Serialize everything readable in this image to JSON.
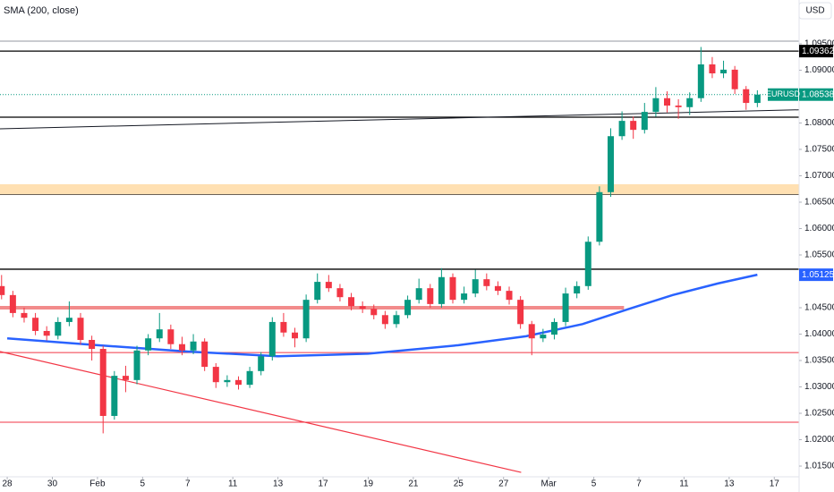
{
  "chart_data": {
    "type": "candlestick",
    "indicator_label": "SMA (200, close)",
    "currency": "USD",
    "symbol": "EURUSD",
    "up_color": "#089981",
    "down_color": "#f23645",
    "x": [
      -0.25,
      0.25,
      0.75,
      1.25,
      1.75,
      2.25,
      2.75,
      3.25,
      3.75,
      4.25,
      4.75,
      5.25,
      5.75,
      6.25,
      6.75,
      7.25,
      7.75,
      8.25,
      8.75,
      9.25,
      9.75,
      10.25,
      10.75,
      11.25,
      11.75,
      12.25,
      12.75,
      13.25,
      13.75,
      14.25,
      14.75,
      15.25,
      15.75,
      16.25,
      16.75,
      17.25,
      17.75,
      18.25,
      18.75,
      19.25,
      19.75,
      20.25,
      20.75,
      21.25,
      21.75,
      22.25,
      22.75,
      23.25,
      23.75,
      24.25,
      24.75,
      25.25,
      25.75,
      26.25,
      26.75,
      27.25,
      27.75,
      28.25,
      28.75,
      29.25,
      29.75,
      30.25,
      30.75,
      31.25,
      31.75,
      32.25,
      32.75,
      33.25
    ],
    "open": [
      1.0491,
      1.0474,
      1.044,
      1.0431,
      1.0406,
      1.0397,
      1.0423,
      1.0431,
      1.0389,
      1.0372,
      1.0245,
      1.0321,
      1.0313,
      1.0369,
      1.0392,
      1.0409,
      1.0381,
      1.0369,
      1.0386,
      1.0338,
      1.0309,
      1.0313,
      1.0304,
      1.033,
      1.0358,
      1.0423,
      1.0403,
      1.0392,
      1.0465,
      1.0499,
      1.0487,
      1.047,
      1.0453,
      1.0448,
      1.0436,
      1.0419,
      1.0436,
      1.0465,
      1.0487,
      1.0457,
      1.0508,
      1.0465,
      1.0477,
      1.0504,
      1.0491,
      1.0482,
      1.0465,
      1.0419,
      1.0392,
      1.0399,
      1.0423,
      1.0477,
      1.0491,
      1.0575,
      1.0669,
      1.0775,
      1.0804,
      1.0787,
      1.0821,
      1.0847,
      1.0833,
      1.083,
      1.0847,
      1.0911,
      1.0894,
      1.0901,
      1.0864,
      1.0838
    ],
    "high": [
      1.0512,
      1.0482,
      1.045,
      1.044,
      1.0415,
      1.0432,
      1.0462,
      1.044,
      1.0397,
      1.0378,
      1.033,
      1.034,
      1.0378,
      1.04,
      1.044,
      1.0418,
      1.0395,
      1.04,
      1.0392,
      1.0345,
      1.0322,
      1.032,
      1.0338,
      1.0366,
      1.0432,
      1.044,
      1.0412,
      1.0475,
      1.0515,
      1.0512,
      1.0495,
      1.0478,
      1.0462,
      1.0456,
      1.0444,
      1.0444,
      1.0473,
      1.0505,
      1.0495,
      1.0525,
      1.0515,
      1.049,
      1.0522,
      1.0515,
      1.05,
      1.049,
      1.0472,
      1.0425,
      1.041,
      1.043,
      1.0488,
      1.05,
      1.0585,
      1.068,
      1.079,
      1.0822,
      1.0812,
      1.0838,
      1.0868,
      1.086,
      1.0845,
      1.0858,
      1.0944,
      1.0925,
      1.0918,
      1.0908,
      1.087,
      1.0862
    ],
    "low": [
      1.0466,
      1.0432,
      1.0422,
      1.0398,
      1.0388,
      1.039,
      1.0415,
      1.038,
      1.035,
      1.0212,
      1.0238,
      1.029,
      1.0305,
      1.036,
      1.0385,
      1.0372,
      1.036,
      1.0362,
      1.033,
      1.0298,
      1.03,
      1.0295,
      1.0298,
      1.0322,
      1.035,
      1.0395,
      1.0375,
      1.0385,
      1.0458,
      1.048,
      1.0462,
      1.0445,
      1.044,
      1.0428,
      1.041,
      1.0412,
      1.043,
      1.0458,
      1.045,
      1.045,
      1.0458,
      1.0458,
      1.047,
      1.0483,
      1.0474,
      1.0456,
      1.041,
      1.036,
      1.0385,
      1.039,
      1.0415,
      1.0468,
      1.0484,
      1.0568,
      1.066,
      1.0768,
      1.077,
      1.078,
      1.0812,
      1.082,
      1.0808,
      1.0815,
      1.084,
      1.0885,
      1.0885,
      1.0855,
      1.0825,
      1.083
    ],
    "close": [
      1.0474,
      1.044,
      1.0431,
      1.0406,
      1.0397,
      1.0423,
      1.0431,
      1.0389,
      1.0372,
      1.0245,
      1.0321,
      1.0313,
      1.0369,
      1.0392,
      1.0409,
      1.0381,
      1.0369,
      1.0386,
      1.0338,
      1.0309,
      1.0313,
      1.0304,
      1.033,
      1.0358,
      1.0423,
      1.0403,
      1.0392,
      1.0465,
      1.0499,
      1.0487,
      1.047,
      1.0453,
      1.0448,
      1.0436,
      1.0419,
      1.0436,
      1.0465,
      1.0487,
      1.0457,
      1.0508,
      1.0465,
      1.0477,
      1.0504,
      1.0491,
      1.0482,
      1.0465,
      1.0419,
      1.0392,
      1.0399,
      1.0423,
      1.0477,
      1.0491,
      1.0575,
      1.0669,
      1.0775,
      1.0804,
      1.0787,
      1.0821,
      1.0847,
      1.0833,
      1.083,
      1.0847,
      1.0911,
      1.0894,
      1.0901,
      1.0864,
      1.0838,
      1.08538
    ],
    "sma": {
      "color": "#2962ff",
      "x": [
        0,
        4,
        8,
        12,
        16,
        20,
        23,
        25.5,
        27.5,
        29.5,
        31.5,
        33.25
      ],
      "values": [
        1.0392,
        1.0379,
        1.0367,
        1.0358,
        1.0363,
        1.0379,
        1.0396,
        1.0419,
        1.0447,
        1.0474,
        1.0496,
        1.05125
      ]
    },
    "levels": [
      {
        "value": 1.0955,
        "color": "#9598a1"
      },
      {
        "value": 1.09362,
        "color": "#000000"
      },
      {
        "value": 1.0811,
        "color": "#000000"
      },
      {
        "value": 1.0523,
        "color": "#000000"
      },
      {
        "value": 1.0365,
        "color": "#f23645"
      },
      {
        "value": 1.0233,
        "color": "#f23645"
      }
    ],
    "zone": {
      "values": [
        1.0664,
        1.0684
      ],
      "color": "#ffe0b2"
    },
    "trendlines": [
      {
        "x": [
          -0.32,
          35.1
        ],
        "y": [
          1.0789,
          1.0825
        ],
        "color": "#131722",
        "width": 1
      },
      {
        "x": [
          -0.32,
          22.78
        ],
        "y": [
          1.0367,
          1.0138
        ],
        "color": "#f23645",
        "width": 1.2
      },
      {
        "x": [
          -0.32,
          27.34
        ],
        "y": [
          1.045,
          1.045
        ],
        "color": "#f28b8b",
        "width": 4
      }
    ],
    "xlim": [
      -0.32,
      35.1
    ],
    "ylim": [
      1.01297,
      1.1033
    ],
    "xticks": [
      {
        "value": 0,
        "label": "28"
      },
      {
        "value": 2,
        "label": "30"
      },
      {
        "value": 4,
        "label": "Feb"
      },
      {
        "value": 6,
        "label": "5"
      },
      {
        "value": 8,
        "label": "7"
      },
      {
        "value": 10,
        "label": "11"
      },
      {
        "value": 12,
        "label": "13"
      },
      {
        "value": 14,
        "label": "17"
      },
      {
        "value": 16,
        "label": "19"
      },
      {
        "value": 18,
        "label": "21"
      },
      {
        "value": 20,
        "label": "25"
      },
      {
        "value": 22,
        "label": "27"
      },
      {
        "value": 24,
        "label": "Mar"
      },
      {
        "value": 26,
        "label": "5"
      },
      {
        "value": 28,
        "label": "7"
      },
      {
        "value": 30,
        "label": "11"
      },
      {
        "value": 32,
        "label": "13"
      },
      {
        "value": 34,
        "label": "17"
      }
    ],
    "yticks": [
      {
        "value": 1.095,
        "label": "1.09500"
      },
      {
        "value": 1.09,
        "label": "1.09000"
      },
      {
        "value": 1.08,
        "label": "1.08000"
      },
      {
        "value": 1.075,
        "label": "1.07500"
      },
      {
        "value": 1.07,
        "label": "1.07000"
      },
      {
        "value": 1.065,
        "label": "1.06500"
      },
      {
        "value": 1.06,
        "label": "1.06000"
      },
      {
        "value": 1.055,
        "label": "1.05500"
      },
      {
        "value": 1.045,
        "label": "1.04500"
      },
      {
        "value": 1.04,
        "label": "1.04000"
      },
      {
        "value": 1.035,
        "label": "1.03500"
      },
      {
        "value": 1.03,
        "label": "1.03000"
      },
      {
        "value": 1.025,
        "label": "1.02500"
      },
      {
        "value": 1.02,
        "label": "1.02000"
      },
      {
        "value": 1.015,
        "label": "1.01500"
      }
    ],
    "grid": false
  }
}
